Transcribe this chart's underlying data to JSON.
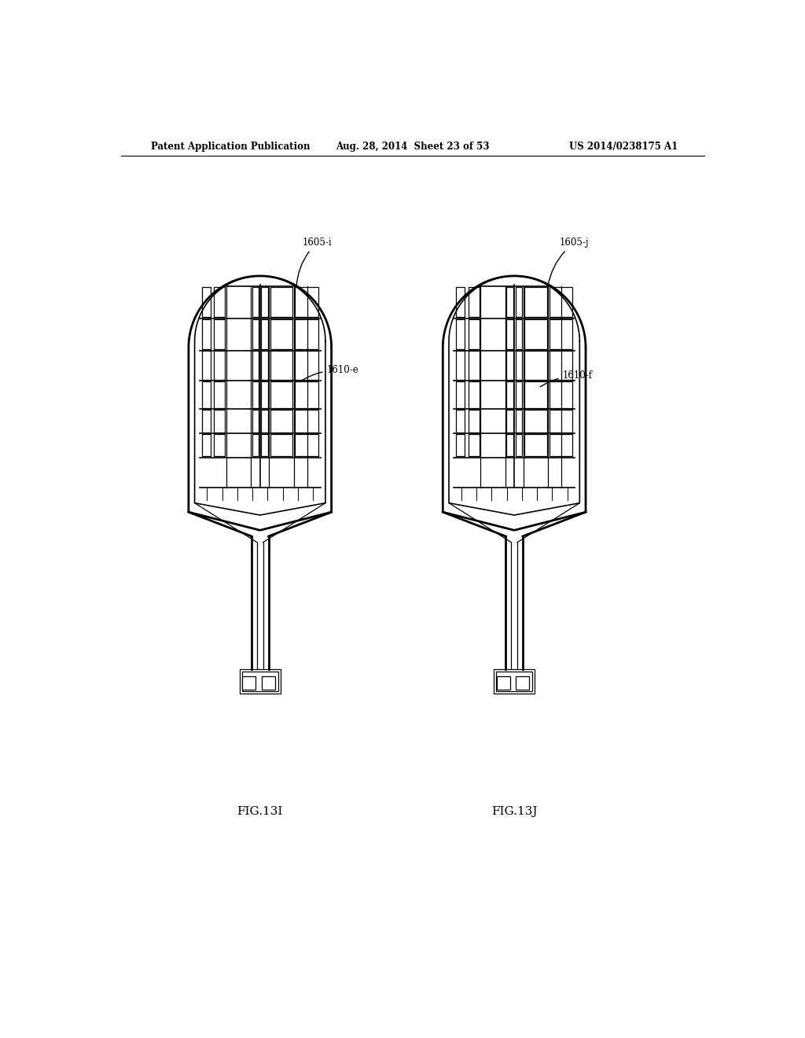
{
  "title_left": "Patent Application Publication",
  "title_mid": "Aug. 28, 2014  Sheet 23 of 53",
  "title_right": "US 2014/0238175 A1",
  "fig_label_i": "FIG.13I",
  "fig_label_j": "FIG.13J",
  "label_1605i": "1605-i",
  "label_1605j": "1605-j",
  "label_1610e": "1610-e",
  "label_1610f": "1610-f",
  "background": "#ffffff",
  "line_color": "#000000"
}
